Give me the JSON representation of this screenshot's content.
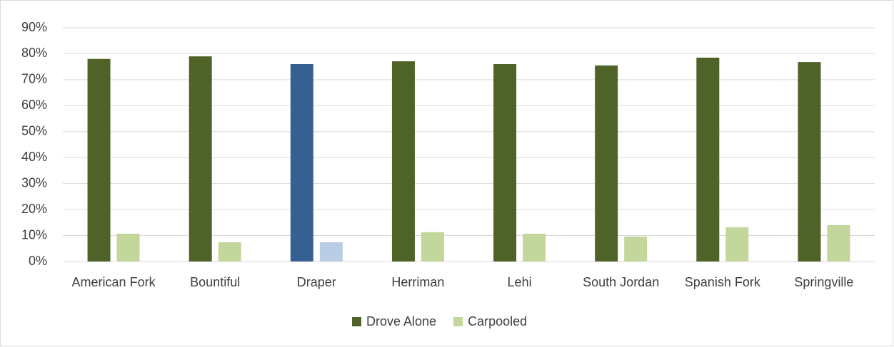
{
  "chart_data": {
    "type": "bar",
    "categories": [
      "American Fork",
      "Bountiful",
      "Draper",
      "Herriman",
      "Lehi",
      "South Jordan",
      "Spanish Fork",
      "Springville"
    ],
    "series": [
      {
        "name": "Drove Alone",
        "color": "#4f6228",
        "colors": [
          "#4f6228",
          "#4f6228",
          "#376092",
          "#4f6228",
          "#4f6228",
          "#4f6228",
          "#4f6228",
          "#4f6228"
        ],
        "values": [
          78,
          79,
          76,
          77.1,
          76,
          75.5,
          78.5,
          76.8
        ]
      },
      {
        "name": "Carpooled",
        "color": "#c3d69b",
        "colors": [
          "#c3d69b",
          "#c3d69b",
          "#b9cde5",
          "#c3d69b",
          "#c3d69b",
          "#c3d69b",
          "#c3d69b",
          "#c3d69b"
        ],
        "values": [
          10.7,
          7.4,
          7.4,
          11.3,
          10.7,
          9.6,
          13.2,
          14
        ]
      }
    ],
    "ylim": [
      0,
      90
    ],
    "yticks": [
      {
        "value": 0,
        "label": "0%"
      },
      {
        "value": 10,
        "label": "10%"
      },
      {
        "value": 20,
        "label": "20%"
      },
      {
        "value": 30,
        "label": "30%"
      },
      {
        "value": 40,
        "label": "40%"
      },
      {
        "value": 50,
        "label": "50%"
      },
      {
        "value": 60,
        "label": "60%"
      },
      {
        "value": 70,
        "label": "70%"
      },
      {
        "value": 80,
        "label": "80%"
      },
      {
        "value": 90,
        "label": "90%"
      }
    ],
    "grid": true,
    "legend": "bottom"
  }
}
